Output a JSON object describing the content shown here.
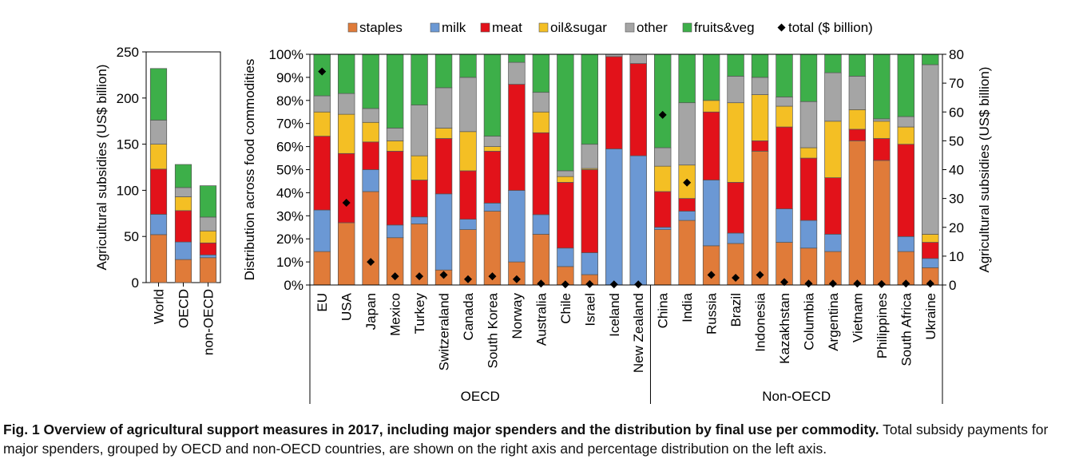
{
  "chart_data": [
    {
      "type": "bar",
      "stacked": true,
      "categories": [
        "World",
        "OECD",
        "non-OECD"
      ],
      "ylabel": "Agricultural subsidies (US$ billion)",
      "ylim": [
        0,
        250
      ],
      "yticks": [
        0,
        50,
        100,
        150,
        200,
        250
      ],
      "series": [
        {
          "name": "staples",
          "color": "#e07b39",
          "values": [
            52,
            25,
            27
          ]
        },
        {
          "name": "milk",
          "color": "#6b98d4",
          "values": [
            22,
            19,
            3
          ]
        },
        {
          "name": "meat",
          "color": "#e2121a",
          "values": [
            49,
            34,
            13
          ]
        },
        {
          "name": "oil&sugar",
          "color": "#f4bf24",
          "values": [
            27,
            15,
            13
          ]
        },
        {
          "name": "other",
          "color": "#a5a5a5",
          "values": [
            26,
            10,
            15
          ]
        },
        {
          "name": "fruits&veg",
          "color": "#3daf49",
          "values": [
            56,
            25,
            34
          ]
        }
      ]
    },
    {
      "type": "bar",
      "stacked": true,
      "percent": true,
      "categories": [
        "EU",
        "USA",
        "Japan",
        "Mexico",
        "Turkey",
        "Switzeraland",
        "Canada",
        "South Korea",
        "Norway",
        "Australia",
        "Chile",
        "Israel",
        "Iceland",
        "New Zealand",
        "China",
        "India",
        "Russia",
        "Brazil",
        "Indonesia",
        "Kazakhstan",
        "Columbia",
        "Argentina",
        "Vietnam",
        "Philippines",
        "South Africa",
        "Ukraine"
      ],
      "groups": [
        {
          "name": "OECD",
          "count": 14
        },
        {
          "name": "Non-OECD",
          "count": 12
        }
      ],
      "ylabel": "Distribution across food commodities",
      "ylabel2": "Agricultural subsidies (US$ billion)",
      "ylim": [
        0,
        100
      ],
      "yticks": [
        "0%",
        "10%",
        "20%",
        "30%",
        "40%",
        "50%",
        "60%",
        "70%",
        "80%",
        "90%",
        "100%"
      ],
      "ylim2": [
        0,
        80
      ],
      "yticks2": [
        0,
        10,
        20,
        30,
        40,
        50,
        60,
        70,
        80
      ],
      "series": [
        {
          "name": "staples",
          "color": "#e07b39",
          "values": [
            14.5,
            27,
            40.5,
            20.5,
            26.5,
            6.5,
            24,
            32,
            10,
            22,
            8,
            4.5,
            0,
            0,
            24,
            28,
            17,
            18,
            58,
            18.5,
            16,
            14.5,
            62.5,
            54,
            14.5,
            7.5
          ]
        },
        {
          "name": "milk",
          "color": "#6b98d4",
          "values": [
            18,
            0,
            9.5,
            5.5,
            3,
            33,
            4.5,
            3.5,
            31,
            8.5,
            8,
            9.5,
            59,
            56,
            1,
            4,
            28.5,
            4.5,
            0,
            14.5,
            12,
            7.5,
            0,
            0,
            6.5,
            4
          ]
        },
        {
          "name": "meat",
          "color": "#e2121a",
          "values": [
            32,
            30,
            12,
            32,
            16,
            24,
            21,
            22.5,
            46,
            35.5,
            28.5,
            36,
            40,
            40,
            15.5,
            5.5,
            29.5,
            22,
            4.5,
            35.5,
            27,
            24.5,
            5,
            9.5,
            40,
            7
          ]
        },
        {
          "name": "oil&sugar",
          "color": "#f4bf24",
          "values": [
            10.5,
            17,
            8.5,
            4.5,
            10.5,
            4.5,
            17,
            2,
            0,
            9,
            2.5,
            0.5,
            0,
            0,
            11,
            14.5,
            5,
            34.5,
            20,
            9,
            4.5,
            24.5,
            8.5,
            7.5,
            7.5,
            3.5
          ]
        },
        {
          "name": "other",
          "color": "#a5a5a5",
          "values": [
            7,
            9,
            6,
            5.5,
            22,
            17.5,
            23.5,
            4.5,
            9.5,
            8.5,
            2.5,
            10.5,
            1,
            4,
            8,
            27,
            0,
            11.5,
            7.5,
            4,
            20,
            21,
            14.5,
            1,
            4.5,
            73.5
          ]
        },
        {
          "name": "fruits&veg",
          "color": "#3daf49",
          "values": [
            18,
            17,
            23.5,
            32,
            22,
            14.5,
            10,
            35.5,
            3.5,
            16.5,
            50.5,
            39,
            0,
            0,
            40.5,
            21,
            20,
            9.5,
            10,
            18.5,
            20.5,
            8,
            9.5,
            28,
            27,
            4.5
          ]
        }
      ],
      "total": {
        "name": "total ($ billion)",
        "marker": "diamond",
        "color": "#000000",
        "values": [
          74,
          28.5,
          8,
          3,
          3,
          3.5,
          2,
          3,
          2,
          0.5,
          0.2,
          0.3,
          0.2,
          0.2,
          59,
          35.5,
          3.5,
          2.5,
          3.5,
          1,
          0.5,
          0.5,
          0.5,
          0.3,
          0.5,
          0.5
        ]
      }
    }
  ],
  "caption": {
    "bold": "Fig. 1 Overview of agricultural support measures in 2017, including major spenders and the distribution by final use per commodity.",
    "rest": " Total subsidy payments for major spenders, grouped by OECD and non-OECD countries, are shown on the right axis and percentage distribution on the left axis."
  }
}
